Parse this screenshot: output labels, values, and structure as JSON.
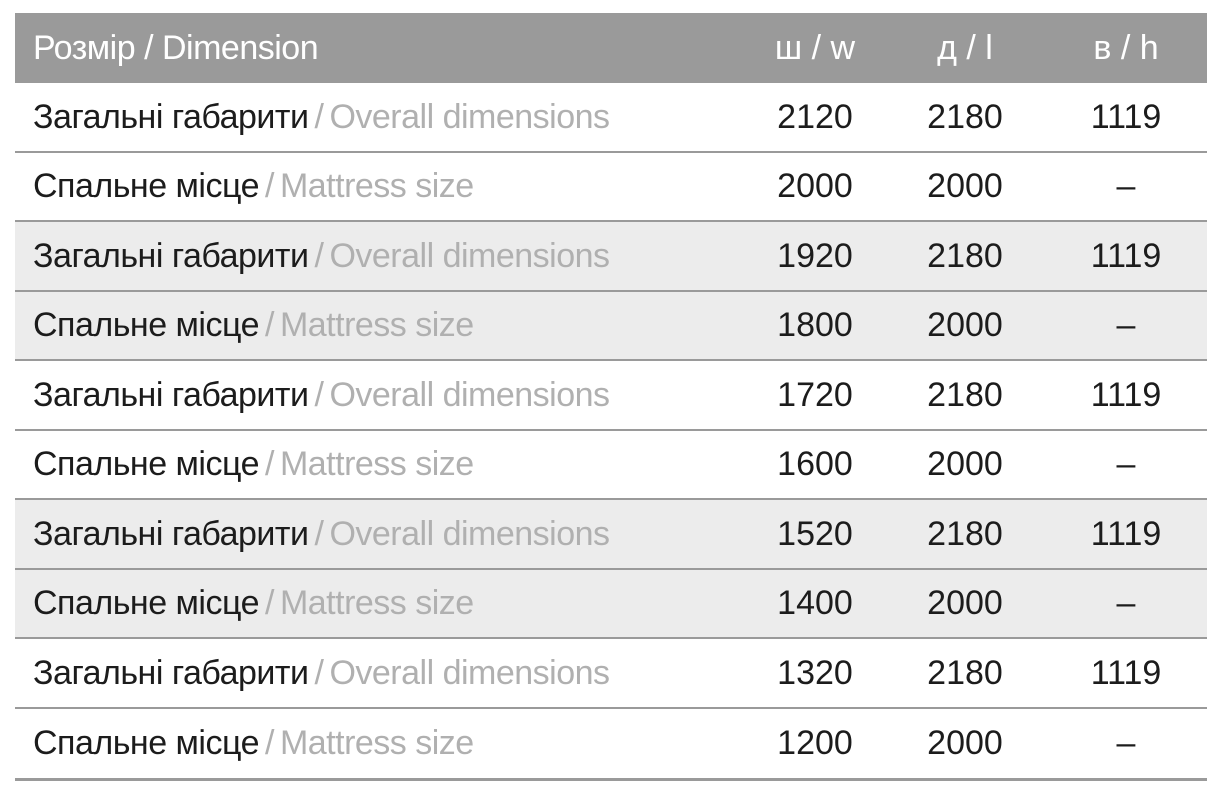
{
  "table": {
    "separator": "/",
    "header": {
      "dimension_label": "Розмір / Dimension",
      "col_w": "ш / w",
      "col_l": "д / l",
      "col_h": "в / h"
    },
    "rows": [
      {
        "label_uk": "Загальні габарити",
        "label_en": "Overall dimensions",
        "w": "2120",
        "l": "2180",
        "h": "1119",
        "shaded": false
      },
      {
        "label_uk": "Спальне місце",
        "label_en": "Mattress size",
        "w": "2000",
        "l": "2000",
        "h": "–",
        "shaded": false
      },
      {
        "label_uk": "Загальні габарити",
        "label_en": "Overall dimensions",
        "w": "1920",
        "l": "2180",
        "h": "1119",
        "shaded": true
      },
      {
        "label_uk": "Спальне місце",
        "label_en": "Mattress size",
        "w": "1800",
        "l": "2000",
        "h": "–",
        "shaded": true
      },
      {
        "label_uk": "Загальні габарити",
        "label_en": "Overall dimensions",
        "w": "1720",
        "l": "2180",
        "h": "1119",
        "shaded": false
      },
      {
        "label_uk": "Спальне місце",
        "label_en": "Mattress size",
        "w": "1600",
        "l": "2000",
        "h": "–",
        "shaded": false
      },
      {
        "label_uk": "Загальні габарити",
        "label_en": "Overall dimensions",
        "w": "1520",
        "l": "2180",
        "h": "1119",
        "shaded": true
      },
      {
        "label_uk": "Спальне місце",
        "label_en": "Mattress size",
        "w": "1400",
        "l": "2000",
        "h": "–",
        "shaded": true
      },
      {
        "label_uk": "Загальні габарити",
        "label_en": "Overall dimensions",
        "w": "1320",
        "l": "2180",
        "h": "1119",
        "shaded": false
      },
      {
        "label_uk": "Спальне місце",
        "label_en": "Mattress size",
        "w": "1200",
        "l": "2000",
        "h": "–",
        "shaded": false
      }
    ],
    "colors": {
      "header_bg": "#9a9a9a",
      "header_text": "#ffffff",
      "row_shaded_bg": "#ececec",
      "label_primary": "#1c1c1c",
      "label_secondary": "#b0b0b0",
      "divider": "#9a9a9a",
      "page_bg": "#ffffff"
    }
  }
}
